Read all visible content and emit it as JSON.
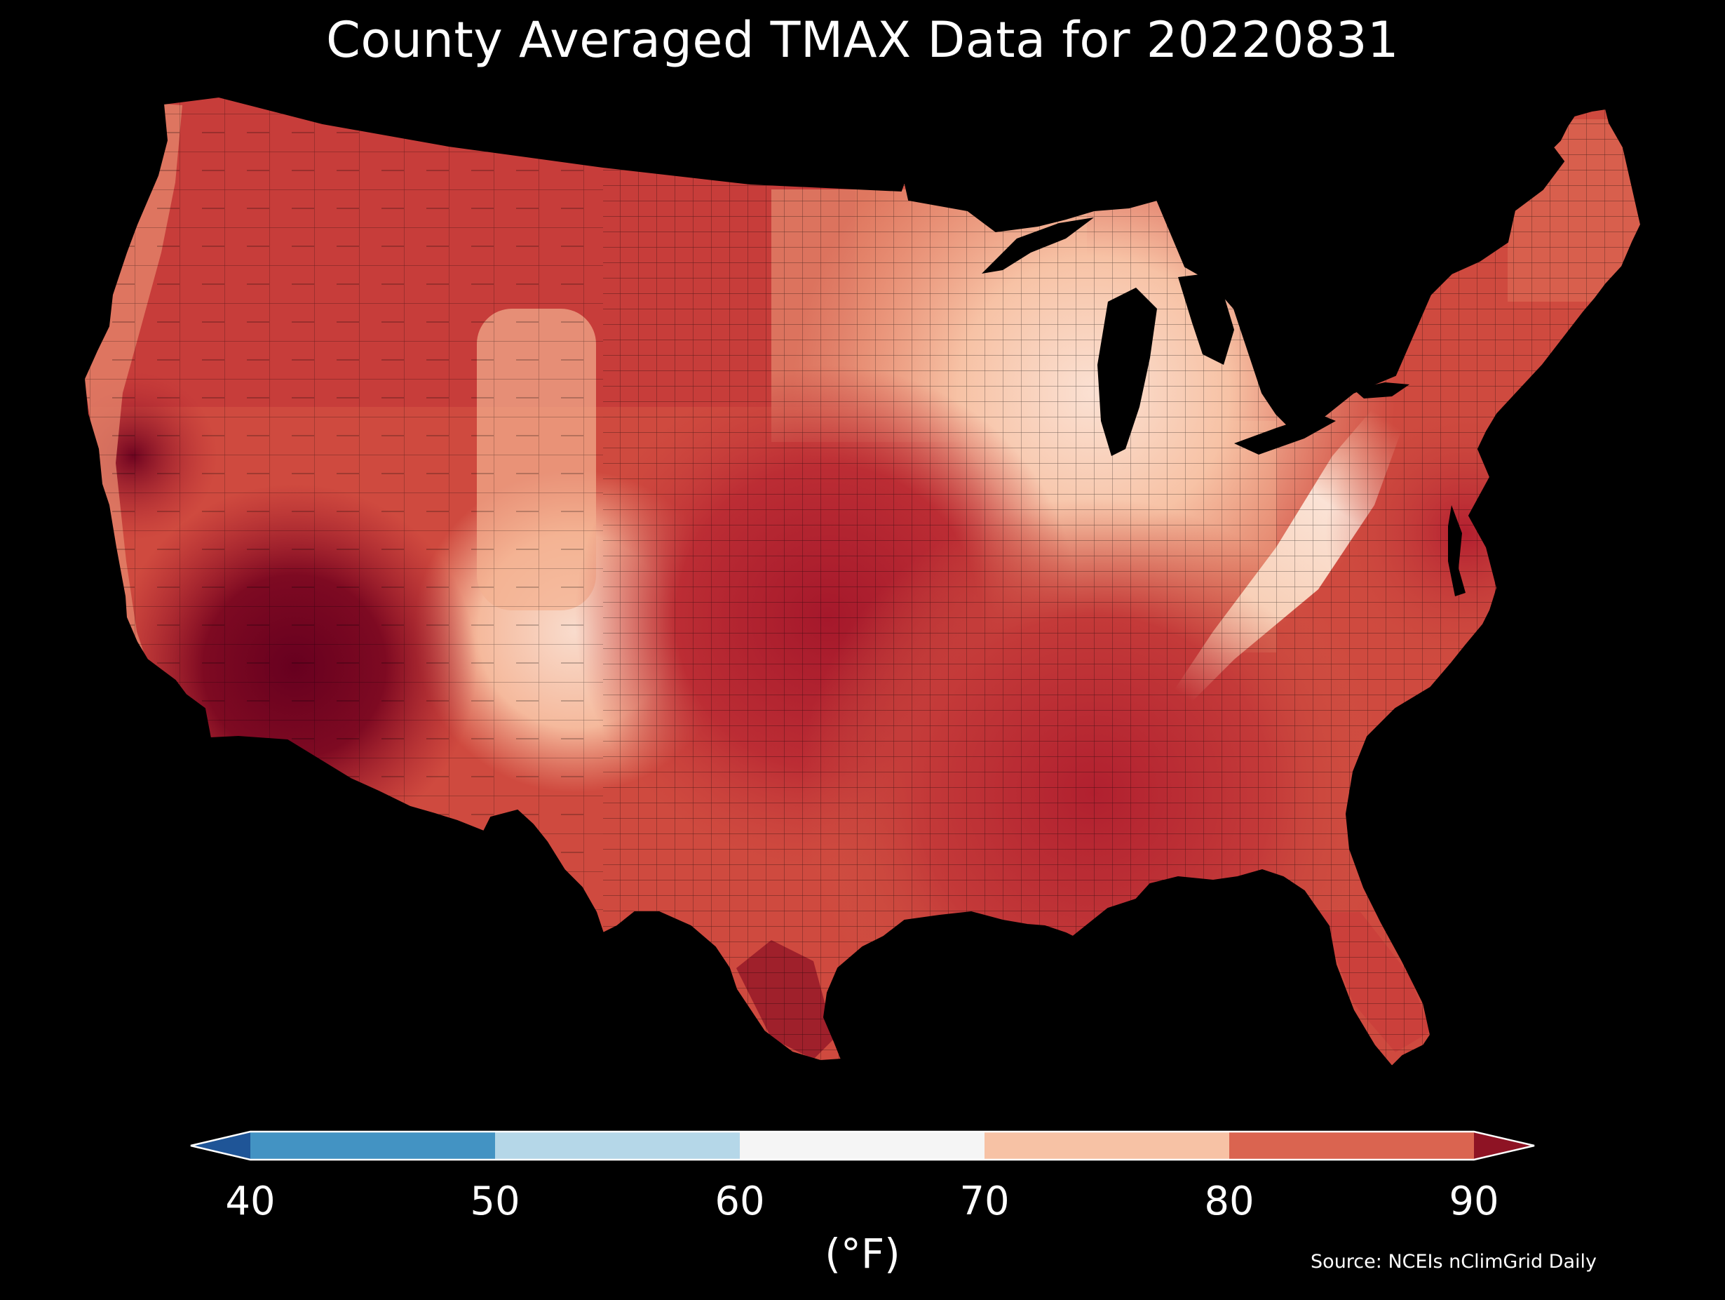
{
  "map": {
    "title": "County Averaged TMAX Data for 20220831",
    "source": "Source: NCEIs nClimGrid Daily",
    "projection": "Lambert conformal conic (CONUS)",
    "background": "#000000",
    "boundary_color": "#000000"
  },
  "legend": {
    "unit_label": "(°F)",
    "ticks": [
      "40",
      "50",
      "60",
      "70",
      "80",
      "90"
    ],
    "bins": [
      {
        "range": "<40",
        "color": "#1f5597"
      },
      {
        "range": "40-50",
        "color": "#4393c3"
      },
      {
        "range": "50-60",
        "color": "#b5d7e8"
      },
      {
        "range": "60-70",
        "color": "#f5f5f5"
      },
      {
        "range": "70-80",
        "color": "#f7c2a5"
      },
      {
        "range": "80-90",
        "color": "#da6450"
      },
      {
        "range": ">90",
        "color": "#8e1324"
      }
    ],
    "extend": "both"
  }
}
